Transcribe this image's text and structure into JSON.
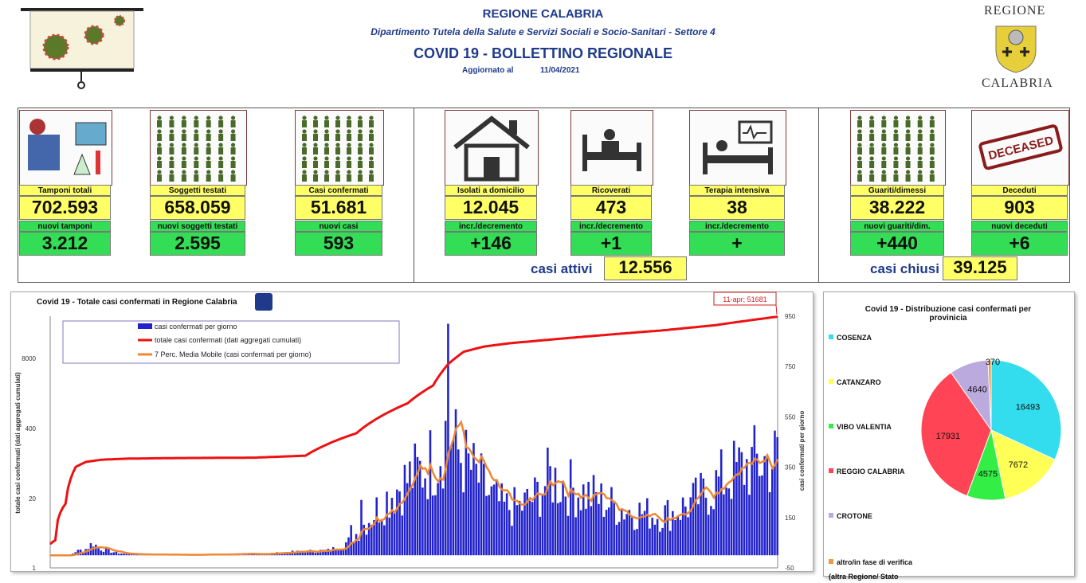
{
  "header": {
    "region": "REGIONE CALABRIA",
    "department": "Dipartimento Tutela della Salute e Servizi Sociali e Socio-Sanitari - Settore 4",
    "bulletin": "COVID 19 - BOLLETTINO REGIONALE",
    "updated_label": "Aggiornato al",
    "updated_date": "11/04/2021"
  },
  "logo": {
    "line1": "REGIONE",
    "line2": "CALABRIA"
  },
  "stats": [
    {
      "label": "Tamponi totali",
      "value": "702.593",
      "sub_label": "nuovi tamponi",
      "sub_value": "3.212",
      "icon": "lab-icon"
    },
    {
      "label": "Soggetti testati",
      "value": "658.059",
      "sub_label": "nuovi soggetti testati",
      "sub_value": "2.595",
      "icon": "people-grid-icon"
    },
    {
      "label": "Casi confermati",
      "value": "51.681",
      "sub_label": "nuovi casi",
      "sub_value": "593",
      "icon": "virus-person-icon"
    },
    {
      "label": "Isolati a domicilio",
      "value": "12.045",
      "sub_label": "incr./decremento",
      "sub_value": "+146",
      "icon": "house-icon"
    },
    {
      "label": "Ricoverati",
      "value": "473",
      "sub_label": "incr./decremento",
      "sub_value": "+1",
      "icon": "hospital-bed-icon"
    },
    {
      "label": "Terapia intensiva",
      "value": "38",
      "sub_label": "incr./decremento",
      "sub_value": "+",
      "icon": "icu-icon"
    },
    {
      "label": "Guariti/dimessi",
      "value": "38.222",
      "sub_label": "nuovi guariti/dim.",
      "sub_value": "+440",
      "icon": "recovered-icon"
    },
    {
      "label": "Deceduti",
      "value": "903",
      "sub_label": "nuovi deceduti",
      "sub_value": "+6",
      "icon": "deceased-stamp-icon"
    }
  ],
  "deceased_stamp": "DECEASED",
  "summary": {
    "active_label": "casi attivi",
    "active_value": "12.556",
    "closed_label": "casi chiusi",
    "closed_value": "39.125"
  },
  "colors": {
    "yellow": "#ffff66",
    "green": "#33dd55",
    "navy": "#1f3a8a",
    "bars": "#2222cc",
    "cumulative": "#ee1111",
    "moving_avg": "#ee8833"
  },
  "chart_data": [
    {
      "type": "bar",
      "title": "Covid 19 - Totale casi confermati in Regione Calabria",
      "ylabel_left": "totale casi confermati (dati aggregati cumulati)",
      "ylabel_right": "casi confermati  per giorno",
      "left_ticks": [
        "1",
        "20",
        "400",
        "8000"
      ],
      "right_ticks": [
        "-50",
        "150",
        "350",
        "550",
        "750",
        "950"
      ],
      "annotation": "11-apr; 51681",
      "legend_position": "top-left",
      "series": [
        {
          "name": "casi confermati per giorno",
          "type": "bar",
          "color": "#2222cc"
        },
        {
          "name": "totale casi confermati (dati aggregati cumulati)",
          "type": "line",
          "color": "#ee1111"
        },
        {
          "name": "7 Perc. Media Mobile (casi confermati per giorno)",
          "type": "line",
          "color": "#ee8833"
        }
      ],
      "daily_profile": [
        [
          0,
          0
        ],
        [
          8,
          0
        ],
        [
          10,
          15
        ],
        [
          14,
          25
        ],
        [
          17,
          50
        ],
        [
          19,
          30
        ],
        [
          22,
          20
        ],
        [
          26,
          10
        ],
        [
          30,
          5
        ],
        [
          40,
          3
        ],
        [
          55,
          2
        ],
        [
          70,
          4
        ],
        [
          80,
          5
        ],
        [
          88,
          8
        ],
        [
          93,
          12
        ],
        [
          100,
          15
        ],
        [
          110,
          20
        ],
        [
          118,
          60
        ],
        [
          126,
          160
        ],
        [
          134,
          250
        ],
        [
          140,
          300
        ],
        [
          146,
          340
        ],
        [
          152,
          400
        ],
        [
          156,
          520
        ],
        [
          158,
          440
        ],
        [
          162,
          380
        ],
        [
          168,
          300
        ],
        [
          172,
          240
        ],
        [
          178,
          190
        ],
        [
          184,
          190
        ],
        [
          190,
          230
        ],
        [
          196,
          310
        ],
        [
          202,
          280
        ],
        [
          208,
          250
        ],
        [
          214,
          230
        ],
        [
          220,
          200
        ],
        [
          226,
          180
        ],
        [
          232,
          170
        ],
        [
          238,
          160
        ],
        [
          244,
          170
        ],
        [
          250,
          200
        ],
        [
          256,
          240
        ],
        [
          262,
          290
        ],
        [
          268,
          330
        ],
        [
          274,
          360
        ],
        [
          280,
          375
        ],
        [
          285,
          385
        ]
      ],
      "cumulative_profile": [
        [
          0,
          1
        ],
        [
          2,
          2
        ],
        [
          6,
          100
        ],
        [
          10,
          800
        ],
        [
          14,
          1000
        ],
        [
          20,
          1100
        ],
        [
          30,
          1150
        ],
        [
          50,
          1180
        ],
        [
          80,
          1200
        ],
        [
          100,
          1300
        ],
        [
          120,
          3000
        ],
        [
          140,
          7500
        ],
        [
          150,
          12000
        ],
        [
          156,
          20000
        ],
        [
          162,
          26000
        ],
        [
          170,
          29000
        ],
        [
          180,
          31000
        ],
        [
          200,
          34000
        ],
        [
          220,
          37000
        ],
        [
          240,
          40000
        ],
        [
          260,
          44000
        ],
        [
          285,
          51681
        ]
      ]
    },
    {
      "type": "pie",
      "title": "Covid 19 - Distribuzione casi confermati per provinicia",
      "legend_position": "left",
      "categories": [
        "COSENZA",
        "CATANZARO",
        "VIBO VALENTIA",
        "REGGIO CALABRIA",
        "CROTONE",
        "altro/in fase di verifica (altra Regione/ Stato"
      ],
      "values": [
        16493,
        7672,
        4575,
        17931,
        4640,
        370
      ],
      "colors": [
        "#33ddee",
        "#ffff55",
        "#33ee44",
        "#ff4455",
        "#bbaadd",
        "#ee9944"
      ]
    }
  ]
}
